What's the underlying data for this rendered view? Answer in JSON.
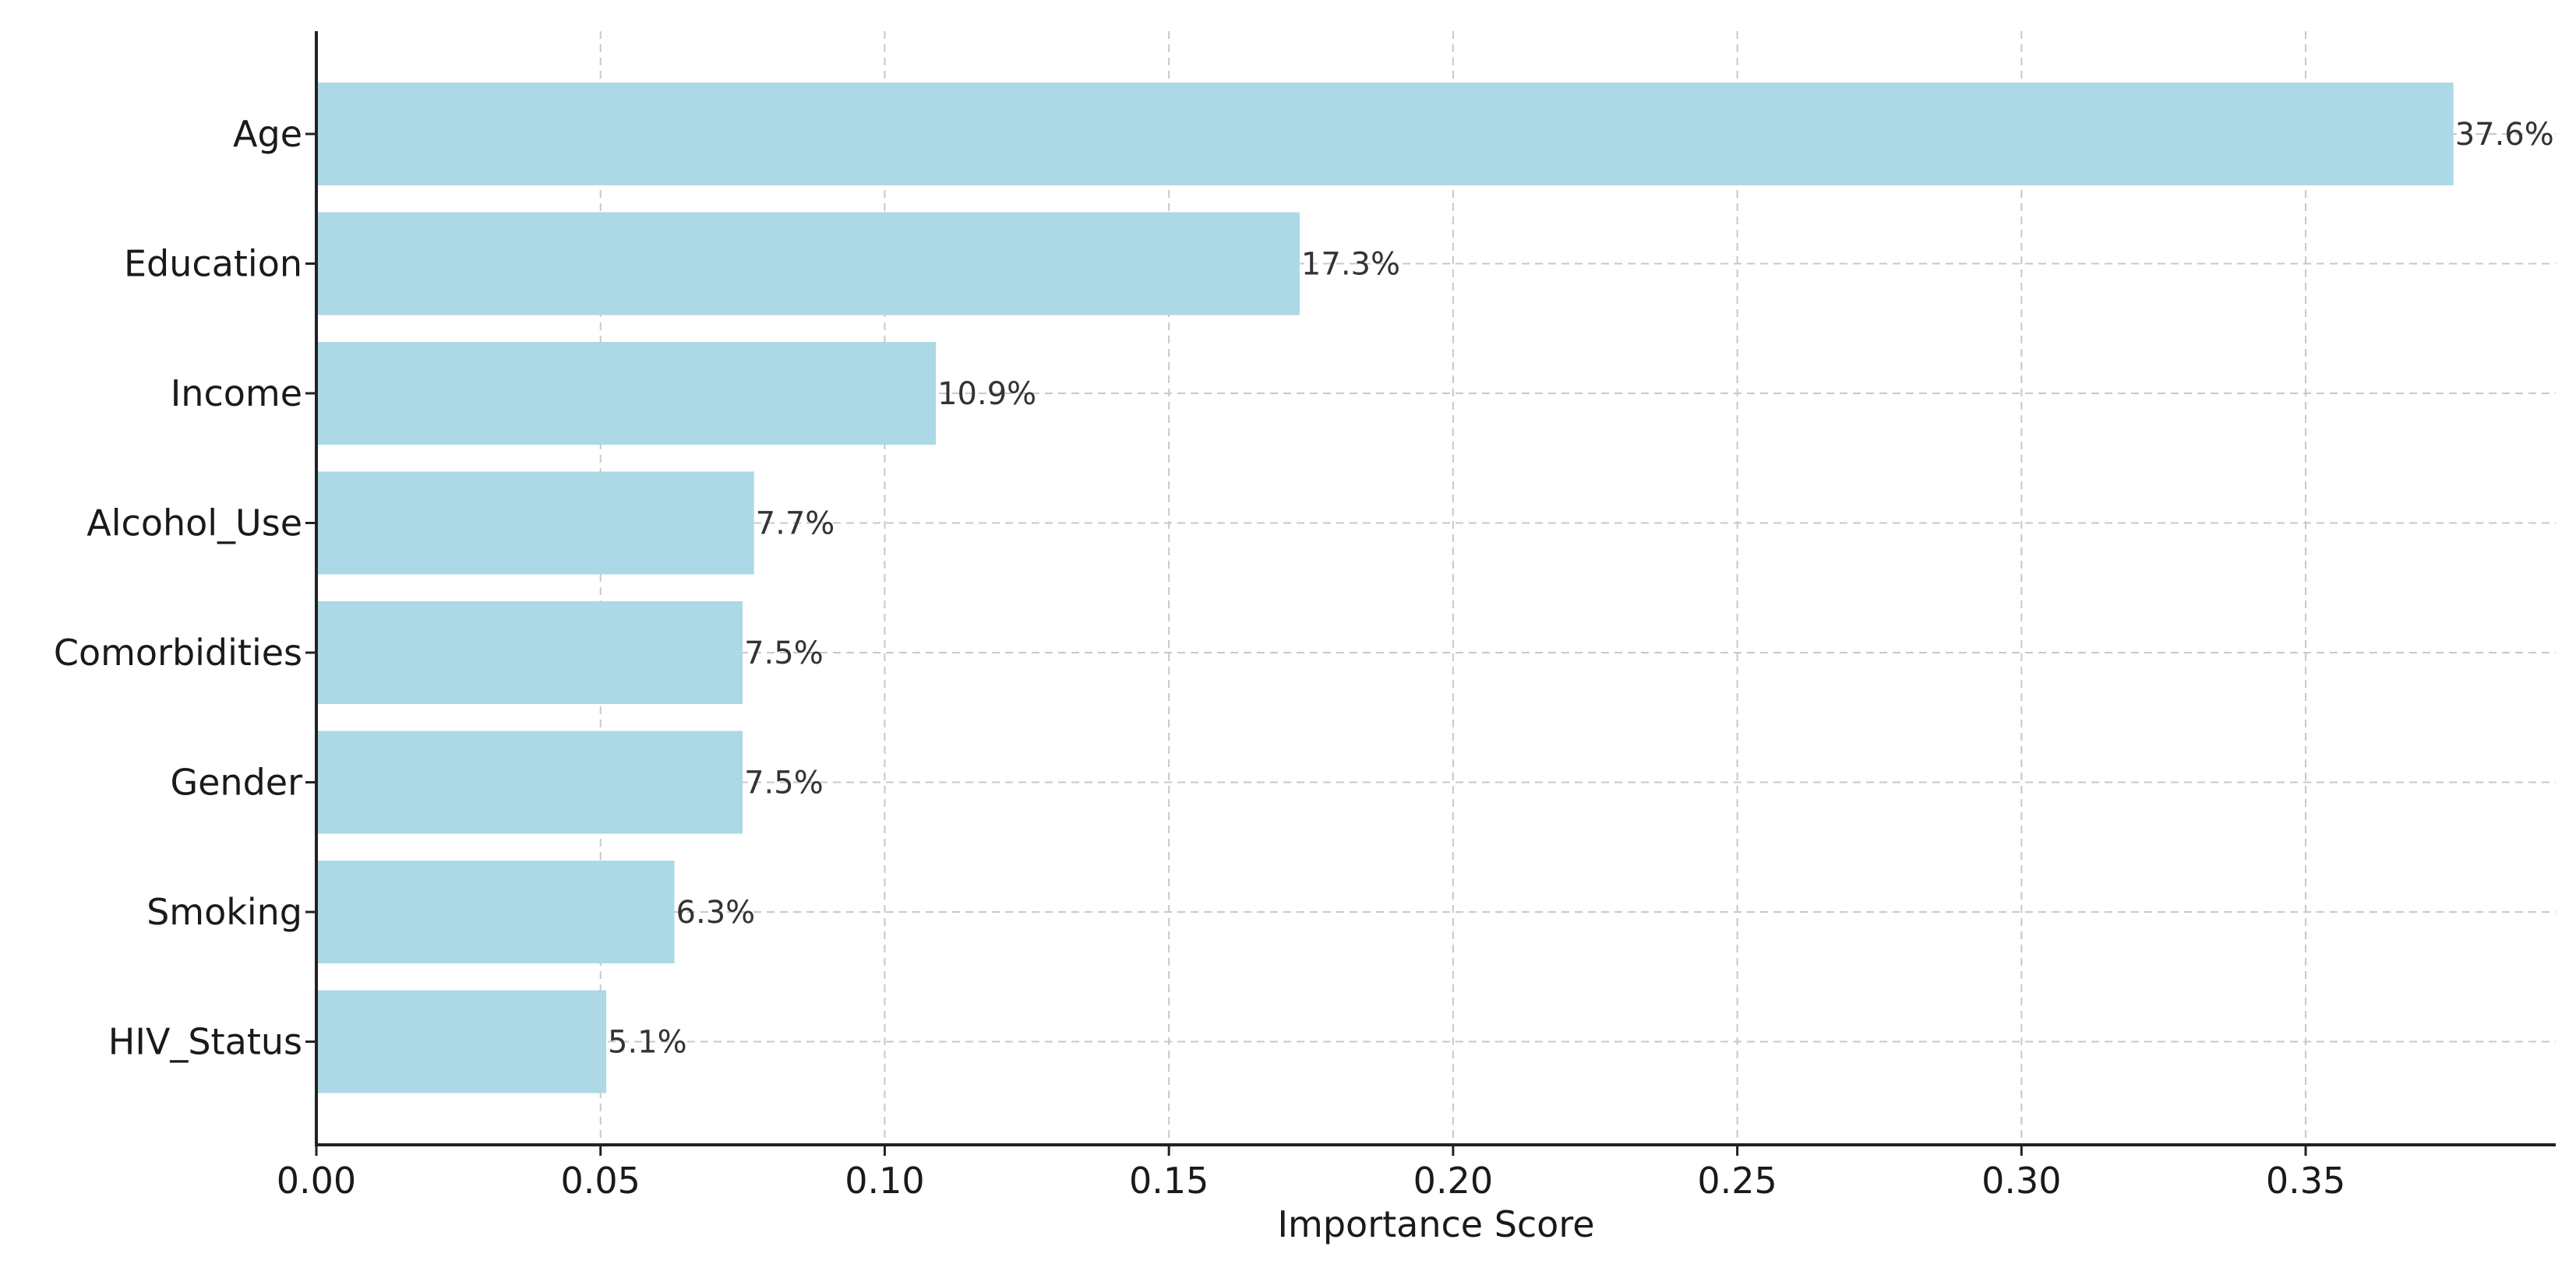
{
  "chart_data": {
    "type": "bar",
    "orientation": "horizontal",
    "categories": [
      "Age",
      "Education",
      "Income",
      "Alcohol_Use",
      "Comorbidities",
      "Gender",
      "Smoking",
      "HIV_Status"
    ],
    "values": [
      0.376,
      0.173,
      0.109,
      0.077,
      0.075,
      0.075,
      0.063,
      0.051
    ],
    "data_labels": [
      "37.6%",
      "17.3%",
      "10.9%",
      "7.7%",
      "7.5%",
      "7.5%",
      "6.3%",
      "5.1%"
    ],
    "xlabel": "Importance Score",
    "ylabel": "",
    "title": "",
    "xlim": [
      0,
      0.394
    ],
    "x_ticks": [
      0.0,
      0.05,
      0.1,
      0.15,
      0.2,
      0.25,
      0.3,
      0.35
    ],
    "x_tick_labels": [
      "0.00",
      "0.05",
      "0.10",
      "0.15",
      "0.20",
      "0.25",
      "0.30",
      "0.35"
    ],
    "grid": true,
    "legend": "none",
    "bar_color": "#add8e6",
    "grid_color": "#c8c8c8"
  }
}
